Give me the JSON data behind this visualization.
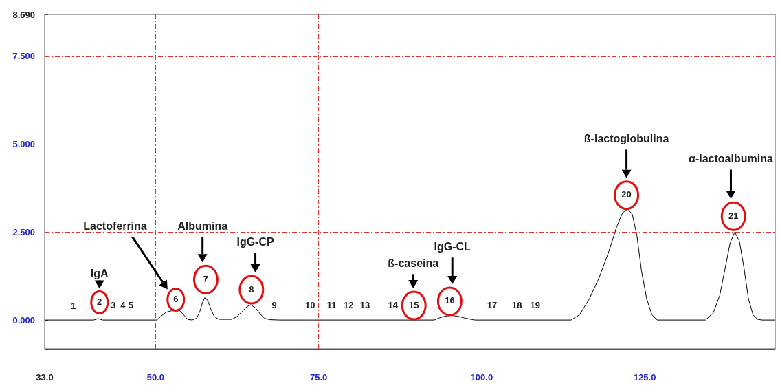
{
  "chart_data": {
    "type": "line",
    "color": "#000000",
    "x": [
      33,
      40.5,
      41.2,
      41.9,
      50.2,
      50.8,
      51.6,
      52.4,
      53.6,
      54.3,
      54.9,
      55.6,
      56.3,
      56.8,
      57.2,
      57.6,
      58.0,
      58.5,
      59.0,
      59.7,
      61.7,
      62.5,
      63.3,
      64.0,
      64.6,
      65.3,
      66.0,
      66.7,
      67.5,
      69,
      92.7,
      93.5,
      94.4,
      95.3,
      96.3,
      97.5,
      99,
      113.7,
      115,
      116.5,
      118,
      119.5,
      120.7,
      121.6,
      122.4,
      123.1,
      123.8,
      124.5,
      125.3,
      126.1,
      126.9,
      134.3,
      135.5,
      136.5,
      137.3,
      138.1,
      138.8,
      139.5,
      140.2,
      140.9,
      141.6,
      142.3,
      143,
      145
    ],
    "values": [
      0,
      0,
      0.04,
      0,
      0,
      0.1,
      0.22,
      0.26,
      0.28,
      0.15,
      0.02,
      0,
      0.05,
      0.25,
      0.5,
      0.65,
      0.55,
      0.3,
      0.1,
      0.02,
      0.02,
      0.1,
      0.25,
      0.38,
      0.43,
      0.35,
      0.18,
      0.05,
      0.01,
      0,
      0,
      0.06,
      0.11,
      0.13,
      0.11,
      0.05,
      0,
      0,
      0.15,
      0.6,
      1.2,
      1.95,
      2.65,
      3.05,
      3.16,
      3.0,
      2.4,
      1.4,
      0.6,
      0.15,
      0,
      0,
      0.2,
      0.7,
      1.45,
      2.2,
      2.5,
      2.25,
      1.5,
      0.6,
      0.15,
      0.02,
      0,
      0
    ],
    "xlim": [
      33,
      145
    ],
    "xticks": [
      {
        "value": 33,
        "label": "33.0"
      },
      {
        "value": 50,
        "label": "50.0"
      },
      {
        "value": 75,
        "label": "75.0"
      },
      {
        "value": 100,
        "label": "100.0"
      },
      {
        "value": 125,
        "label": "125.0"
      }
    ],
    "ylim": [
      -0.82,
      8.69
    ],
    "yticks": [
      {
        "value": 0,
        "label": "0.000"
      },
      {
        "value": 2.5,
        "label": "2.500"
      },
      {
        "value": 5,
        "label": "5.000"
      },
      {
        "value": 7.5,
        "label": "7.500"
      },
      {
        "value": 8.69,
        "label": "8.690"
      }
    ],
    "grid": true,
    "marker": "none",
    "line_style": "solid",
    "annotations": [
      "1",
      "2",
      "3",
      "4",
      "5",
      "6",
      "7",
      "8",
      "9",
      "10",
      "11",
      "12",
      "13",
      "14",
      "15",
      "16",
      "17",
      "18",
      "19",
      "20",
      "21",
      "IgA",
      "Lactoferrina",
      "Albumina",
      "IgG-CP",
      "ß-caseína",
      "IgG-CL",
      "ß-lactoglobulina",
      "α-lactoalbumina"
    ]
  }
}
